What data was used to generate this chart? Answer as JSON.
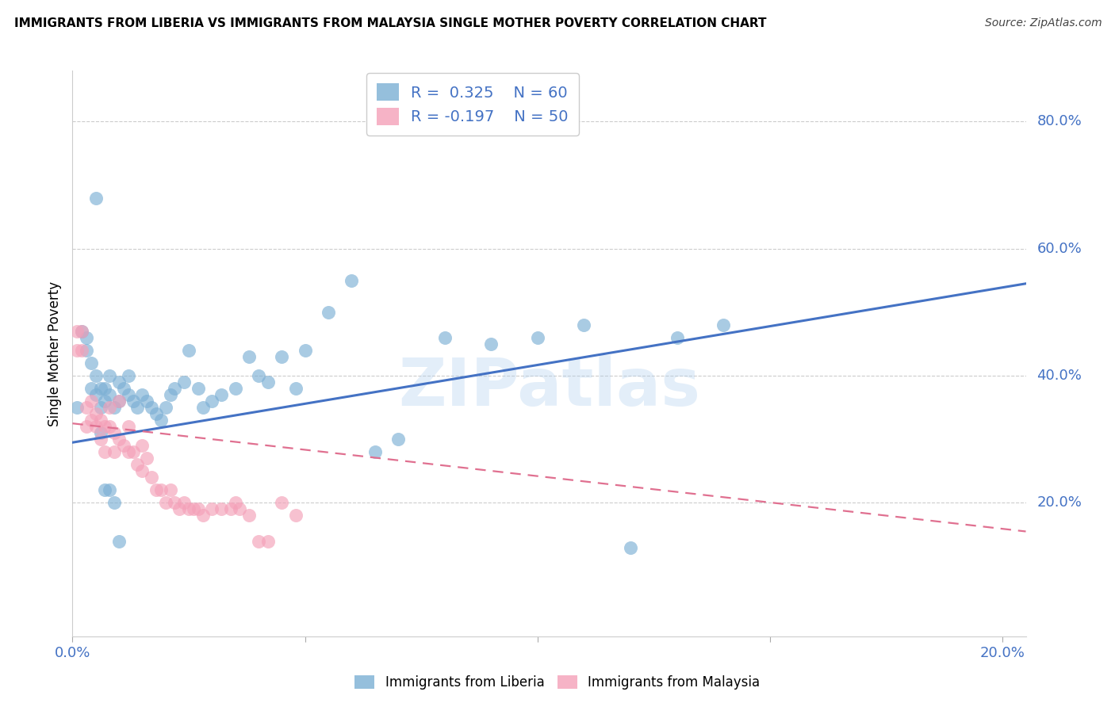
{
  "title": "IMMIGRANTS FROM LIBERIA VS IMMIGRANTS FROM MALAYSIA SINGLE MOTHER POVERTY CORRELATION CHART",
  "source": "Source: ZipAtlas.com",
  "ylabel": "Single Mother Poverty",
  "watermark": "ZIPatlas",
  "xlim": [
    0.0,
    0.205
  ],
  "ylim": [
    -0.01,
    0.88
  ],
  "liberia_color": "#7BAFD4",
  "malaysia_color": "#F4A0B8",
  "liberia_line_color": "#4472C4",
  "malaysia_line_color": "#E07090",
  "legend_label_liberia": "Immigrants from Liberia",
  "legend_label_malaysia": "Immigrants from Malaysia",
  "grid_color": "#CCCCCC",
  "background_color": "#FFFFFF",
  "liberia_x": [
    0.001,
    0.002,
    0.003,
    0.003,
    0.004,
    0.004,
    0.005,
    0.005,
    0.006,
    0.006,
    0.007,
    0.007,
    0.008,
    0.008,
    0.009,
    0.01,
    0.01,
    0.011,
    0.012,
    0.012,
    0.013,
    0.014,
    0.015,
    0.016,
    0.017,
    0.018,
    0.019,
    0.02,
    0.021,
    0.022,
    0.024,
    0.025,
    0.027,
    0.028,
    0.03,
    0.032,
    0.035,
    0.038,
    0.04,
    0.042,
    0.045,
    0.048,
    0.05,
    0.055,
    0.06,
    0.065,
    0.07,
    0.08,
    0.09,
    0.1,
    0.11,
    0.12,
    0.13,
    0.14,
    0.005,
    0.006,
    0.007,
    0.008,
    0.009,
    0.01
  ],
  "liberia_y": [
    0.35,
    0.47,
    0.46,
    0.44,
    0.38,
    0.42,
    0.4,
    0.37,
    0.38,
    0.35,
    0.36,
    0.38,
    0.37,
    0.4,
    0.35,
    0.36,
    0.39,
    0.38,
    0.37,
    0.4,
    0.36,
    0.35,
    0.37,
    0.36,
    0.35,
    0.34,
    0.33,
    0.35,
    0.37,
    0.38,
    0.39,
    0.44,
    0.38,
    0.35,
    0.36,
    0.37,
    0.38,
    0.43,
    0.4,
    0.39,
    0.43,
    0.38,
    0.44,
    0.5,
    0.55,
    0.28,
    0.3,
    0.46,
    0.45,
    0.46,
    0.48,
    0.13,
    0.46,
    0.48,
    0.68,
    0.31,
    0.22,
    0.22,
    0.2,
    0.14
  ],
  "malaysia_x": [
    0.001,
    0.001,
    0.002,
    0.002,
    0.003,
    0.003,
    0.004,
    0.004,
    0.005,
    0.005,
    0.006,
    0.006,
    0.007,
    0.007,
    0.008,
    0.008,
    0.009,
    0.009,
    0.01,
    0.01,
    0.011,
    0.012,
    0.012,
    0.013,
    0.014,
    0.015,
    0.015,
    0.016,
    0.017,
    0.018,
    0.019,
    0.02,
    0.021,
    0.022,
    0.023,
    0.024,
    0.025,
    0.026,
    0.027,
    0.028,
    0.03,
    0.032,
    0.034,
    0.035,
    0.036,
    0.038,
    0.04,
    0.042,
    0.045,
    0.048
  ],
  "malaysia_y": [
    0.47,
    0.44,
    0.47,
    0.44,
    0.35,
    0.32,
    0.36,
    0.33,
    0.34,
    0.32,
    0.33,
    0.3,
    0.32,
    0.28,
    0.35,
    0.32,
    0.31,
    0.28,
    0.36,
    0.3,
    0.29,
    0.32,
    0.28,
    0.28,
    0.26,
    0.29,
    0.25,
    0.27,
    0.24,
    0.22,
    0.22,
    0.2,
    0.22,
    0.2,
    0.19,
    0.2,
    0.19,
    0.19,
    0.19,
    0.18,
    0.19,
    0.19,
    0.19,
    0.2,
    0.19,
    0.18,
    0.14,
    0.14,
    0.2,
    0.18
  ],
  "liberia_trend_x": [
    0.0,
    0.205
  ],
  "liberia_trend_y": [
    0.295,
    0.545
  ],
  "malaysia_trend_x": [
    0.0,
    0.205
  ],
  "malaysia_trend_y": [
    0.325,
    0.155
  ]
}
